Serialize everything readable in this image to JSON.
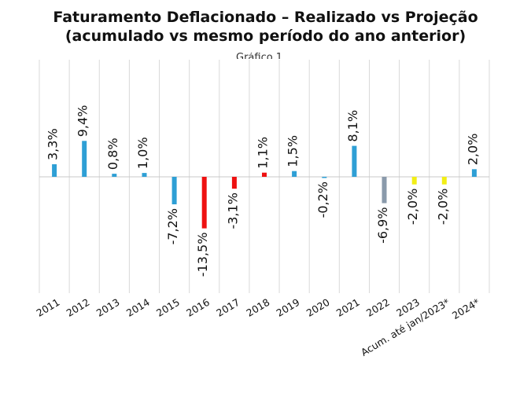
{
  "title": {
    "line1": "Faturamento Deflacionado – Realizado vs Projeção",
    "line2": "(acumulado vs mesmo período do ano anterior)"
  },
  "ghost_label": "Gráfico 1",
  "colors": {
    "default": "#2e9fd5",
    "negative_highlight": "#ee1111",
    "gray": "#8a9aab",
    "projection": "#f2ee15",
    "grid": "#d9d9d9",
    "axis": "#c8c8c8"
  },
  "chart_data": {
    "type": "bar",
    "title": "Faturamento Deflacionado – Realizado vs Projeção",
    "subtitle": "(acumulado vs mesmo período do ano anterior)",
    "xlabel": "",
    "ylabel": "",
    "ylim": [
      -20,
      20
    ],
    "grid": true,
    "legend": "none",
    "categories": [
      "2011",
      "2012",
      "2013",
      "2014",
      "2015",
      "2016",
      "2017",
      "2018",
      "2019",
      "2020",
      "2021",
      "2022",
      "2023",
      "Acum. até jan/2023*",
      "2024*"
    ],
    "values": [
      3.3,
      9.4,
      0.8,
      1.0,
      -7.2,
      -13.5,
      -3.1,
      1.1,
      1.5,
      -0.2,
      8.1,
      -6.9,
      -2.0,
      -2.0,
      2.0
    ],
    "labels": [
      "3,3%",
      "9,4%",
      "0,8%",
      "1,0%",
      "-7,2%",
      "-13,5%",
      "-3,1%",
      "1,1%",
      "1,5%",
      "-0,2%",
      "8,1%",
      "-6,9%",
      "-2,0%",
      "-2,0%",
      "2,0%"
    ],
    "bar_colors": [
      "#2e9fd5",
      "#2e9fd5",
      "#2e9fd5",
      "#2e9fd5",
      "#2e9fd5",
      "#ee1111",
      "#ee1111",
      "#ee1111",
      "#2e9fd5",
      "#2e9fd5",
      "#2e9fd5",
      "#8a9aab",
      "#f2ee15",
      "#f2ee15",
      "#2e9fd5"
    ]
  }
}
